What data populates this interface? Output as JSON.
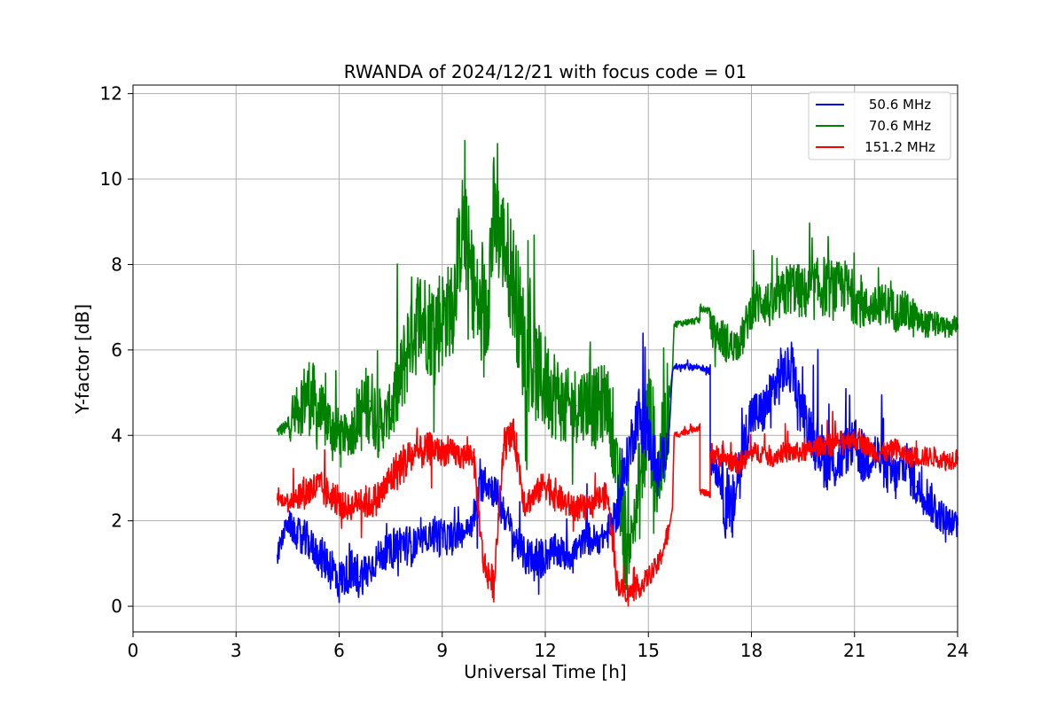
{
  "chart_data": {
    "type": "line",
    "title": "RWANDA of 2024/12/21 with focus code = 01",
    "xlabel": "Universal Time [h]",
    "ylabel": "Y-factor [dB]",
    "xlim": [
      0,
      24
    ],
    "ylim": [
      -0.6,
      12.2
    ],
    "xticks": [
      0,
      3,
      6,
      9,
      12,
      15,
      18,
      21,
      24
    ],
    "yticks": [
      0,
      2,
      4,
      6,
      8,
      10,
      12
    ],
    "grid": true,
    "legend_position": "top-right",
    "series": [
      {
        "name": " 50.6 MHz",
        "color": "#0000ff",
        "x": [
          4.2,
          4.5,
          4.8,
          5.1,
          5.4,
          5.7,
          6.0,
          6.3,
          6.6,
          6.9,
          7.2,
          7.5,
          7.8,
          8.1,
          8.4,
          8.7,
          9.0,
          9.3,
          9.6,
          9.9,
          10.2,
          10.5,
          10.8,
          11.1,
          11.4,
          11.7,
          12.0,
          12.3,
          12.6,
          12.9,
          13.2,
          13.5,
          13.8,
          14.1,
          14.4,
          14.7,
          15.0,
          15.3,
          15.6,
          15.7,
          15.75,
          16.5,
          16.5,
          16.8,
          16.8,
          17.1,
          17.4,
          17.7,
          18.0,
          18.3,
          18.6,
          18.9,
          19.2,
          19.5,
          19.8,
          20.1,
          20.4,
          20.7,
          21.0,
          21.3,
          21.6,
          21.9,
          22.2,
          22.5,
          22.8,
          23.1,
          23.4,
          23.7,
          24.0
        ],
        "y": [
          1.2,
          2.0,
          1.6,
          1.5,
          1.2,
          1.0,
          0.6,
          0.8,
          0.7,
          0.9,
          1.2,
          1.3,
          1.5,
          1.4,
          1.5,
          1.7,
          1.6,
          1.6,
          1.7,
          2.0,
          3.0,
          2.7,
          2.2,
          1.6,
          1.2,
          1.0,
          1.2,
          1.3,
          1.2,
          1.3,
          1.6,
          1.5,
          1.7,
          2.2,
          3.5,
          4.5,
          4.0,
          3.0,
          4.0,
          5.5,
          5.6,
          5.6,
          5.6,
          5.5,
          3.5,
          3.0,
          2.0,
          3.5,
          4.5,
          4.5,
          5.0,
          5.5,
          5.5,
          4.5,
          4.0,
          3.5,
          3.3,
          3.6,
          3.8,
          3.4,
          3.6,
          3.2,
          3.0,
          3.4,
          2.8,
          2.6,
          2.2,
          2.0,
          1.9
        ],
        "dx": [
          0.3,
          0.4,
          0.6,
          0.5,
          0.6,
          0.7,
          0.6,
          0.7,
          0.6,
          0.5,
          0.5,
          0.6,
          0.6,
          0.5,
          0.4,
          0.6,
          0.5,
          0.4,
          0.3,
          0.6,
          0.5,
          0.6,
          0.5,
          0.5,
          0.6,
          0.6,
          0.5,
          0.5,
          0.5,
          0.4,
          0.5,
          0.4,
          0.5,
          0.7,
          0.8,
          0.9,
          0.8,
          0.6,
          0.5,
          0.2,
          0.1,
          0.1,
          0.1,
          0.1,
          0.5,
          1.2,
          1.0,
          0.8,
          0.7,
          0.7,
          0.8,
          0.7,
          0.6,
          0.8,
          0.9,
          0.9,
          0.8,
          0.7,
          0.8,
          0.7,
          0.7,
          0.7,
          0.6,
          0.7,
          0.6,
          0.6,
          0.5,
          0.4,
          0.3
        ]
      },
      {
        "name": " 70.6 MHz",
        "color": "#008000",
        "x": [
          4.2,
          4.5,
          4.8,
          5.1,
          5.4,
          5.7,
          6.0,
          6.3,
          6.6,
          6.9,
          7.2,
          7.5,
          7.8,
          8.1,
          8.4,
          8.7,
          9.0,
          9.3,
          9.6,
          9.9,
          10.2,
          10.5,
          10.8,
          11.1,
          11.4,
          11.7,
          12.0,
          12.3,
          12.6,
          12.9,
          13.2,
          13.5,
          13.8,
          14.1,
          14.4,
          14.7,
          15.0,
          15.3,
          15.6,
          15.7,
          15.75,
          16.5,
          16.5,
          16.8,
          16.8,
          17.1,
          17.4,
          17.7,
          18.0,
          18.3,
          18.6,
          18.9,
          19.2,
          19.5,
          19.8,
          20.1,
          20.4,
          20.7,
          21.0,
          21.3,
          21.6,
          21.9,
          22.2,
          22.5,
          22.8,
          23.1,
          23.4,
          23.7,
          24.0
        ],
        "y": [
          4.1,
          4.2,
          4.7,
          5.0,
          4.5,
          4.3,
          4.0,
          4.0,
          4.5,
          4.8,
          4.2,
          4.6,
          5.3,
          6.5,
          6.8,
          6.5,
          6.8,
          7.0,
          9.0,
          7.5,
          6.5,
          9.0,
          8.5,
          7.5,
          6.0,
          5.5,
          5.2,
          5.0,
          4.6,
          4.7,
          4.8,
          4.6,
          4.9,
          3.0,
          1.2,
          2.5,
          4.5,
          3.0,
          4.8,
          5.5,
          6.6,
          6.7,
          7.0,
          6.9,
          6.5,
          6.3,
          6.1,
          6.2,
          7.0,
          7.2,
          7.0,
          7.3,
          7.5,
          7.3,
          7.4,
          7.5,
          7.4,
          7.5,
          7.2,
          7.0,
          7.0,
          7.1,
          6.9,
          6.9,
          6.7,
          6.6,
          6.6,
          6.5,
          6.6
        ],
        "dx": [
          0.2,
          0.6,
          1.0,
          1.2,
          0.9,
          0.8,
          0.6,
          0.8,
          1.2,
          1.1,
          0.8,
          1.2,
          1.4,
          1.6,
          1.5,
          1.6,
          1.4,
          1.5,
          1.6,
          1.5,
          2.0,
          1.6,
          1.8,
          1.8,
          1.6,
          1.5,
          1.4,
          1.2,
          1.2,
          1.1,
          1.2,
          1.2,
          1.0,
          1.5,
          0.8,
          1.6,
          1.7,
          1.5,
          1.5,
          0.3,
          0.1,
          0.1,
          0.1,
          0.1,
          0.5,
          0.6,
          0.5,
          0.6,
          0.7,
          0.7,
          0.7,
          0.8,
          0.8,
          0.8,
          0.9,
          0.9,
          0.8,
          0.8,
          0.7,
          0.6,
          0.6,
          0.6,
          0.6,
          0.6,
          0.4,
          0.4,
          0.3,
          0.3,
          0.2
        ]
      },
      {
        "name": "151.2 MHz",
        "color": "#ff0000",
        "x": [
          4.2,
          4.5,
          4.8,
          5.1,
          5.4,
          5.7,
          6.0,
          6.3,
          6.6,
          6.9,
          7.2,
          7.5,
          7.8,
          8.1,
          8.4,
          8.7,
          9.0,
          9.3,
          9.6,
          9.9,
          10.2,
          10.5,
          10.8,
          11.1,
          11.4,
          11.7,
          12.0,
          12.3,
          12.6,
          12.9,
          13.2,
          13.5,
          13.8,
          14.1,
          14.4,
          14.7,
          15.0,
          15.3,
          15.6,
          15.7,
          15.75,
          16.5,
          16.5,
          16.8,
          16.8,
          17.1,
          17.4,
          17.7,
          18.0,
          18.3,
          18.6,
          18.9,
          19.2,
          19.5,
          19.8,
          20.1,
          20.4,
          20.7,
          21.0,
          21.3,
          21.6,
          21.9,
          22.2,
          22.5,
          22.8,
          23.1,
          23.4,
          23.7,
          24.0
        ],
        "y": [
          2.5,
          2.5,
          2.6,
          2.7,
          2.8,
          2.6,
          2.4,
          2.3,
          2.5,
          2.4,
          2.6,
          3.0,
          3.3,
          3.5,
          3.6,
          3.7,
          3.6,
          3.6,
          3.5,
          3.6,
          1.0,
          0.5,
          3.8,
          4.0,
          2.4,
          2.6,
          2.9,
          2.6,
          2.4,
          2.3,
          2.3,
          2.5,
          2.6,
          0.5,
          0.3,
          0.4,
          0.7,
          1.0,
          1.8,
          2.3,
          4.0,
          4.2,
          2.7,
          2.6,
          3.6,
          3.5,
          3.4,
          3.3,
          3.6,
          3.6,
          3.5,
          3.6,
          3.6,
          3.6,
          3.7,
          3.8,
          3.8,
          3.9,
          3.9,
          3.8,
          3.6,
          3.6,
          3.7,
          3.5,
          3.5,
          3.5,
          3.5,
          3.4,
          3.5
        ],
        "dx": [
          0.2,
          0.4,
          0.5,
          0.5,
          0.5,
          0.4,
          0.4,
          0.4,
          0.5,
          0.5,
          0.5,
          0.6,
          0.6,
          0.5,
          0.5,
          0.4,
          0.4,
          0.4,
          0.4,
          0.4,
          0.5,
          0.3,
          0.5,
          0.5,
          0.4,
          0.4,
          0.5,
          0.4,
          0.4,
          0.4,
          0.3,
          0.4,
          0.4,
          0.3,
          0.3,
          0.3,
          0.3,
          0.3,
          0.3,
          0.2,
          0.1,
          0.1,
          0.1,
          0.1,
          0.3,
          0.3,
          0.3,
          0.3,
          0.3,
          0.3,
          0.3,
          0.3,
          0.3,
          0.3,
          0.3,
          0.3,
          0.3,
          0.3,
          0.3,
          0.3,
          0.3,
          0.3,
          0.3,
          0.3,
          0.3,
          0.3,
          0.3,
          0.3,
          0.3
        ]
      }
    ]
  }
}
